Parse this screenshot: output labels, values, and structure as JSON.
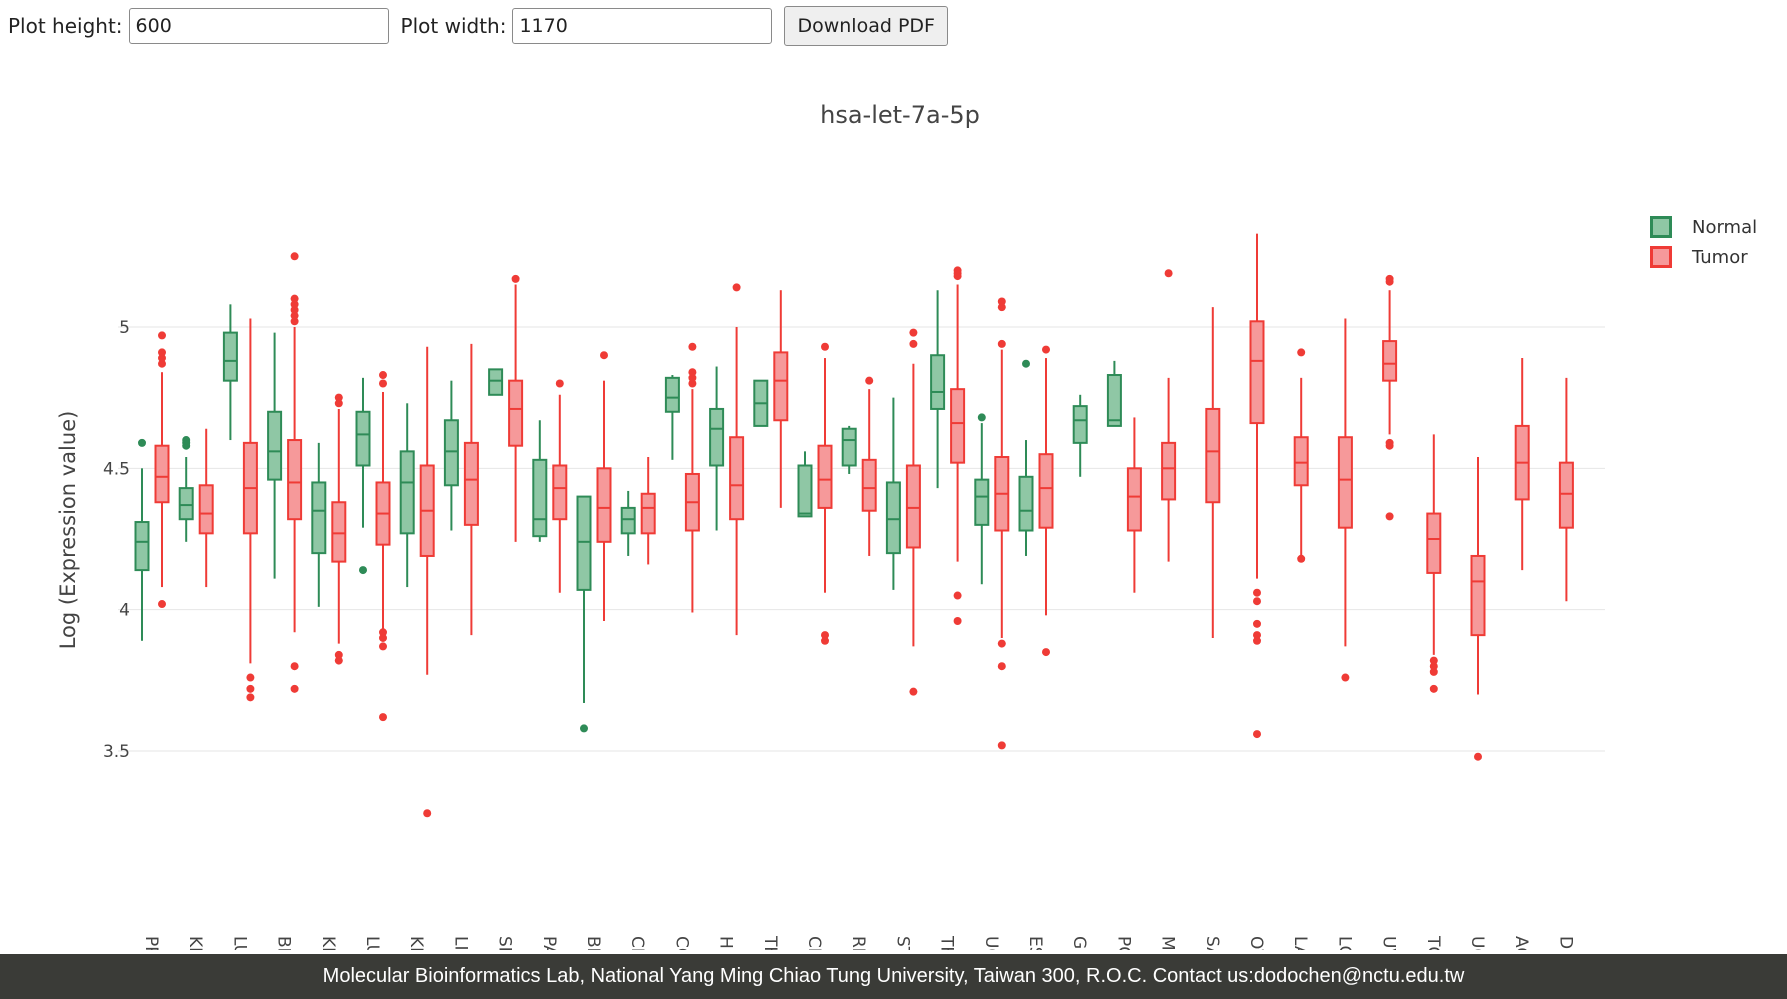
{
  "controls": {
    "height_label": "Plot height:",
    "height_value": "600",
    "width_label": "Plot width:",
    "width_value": "1170",
    "download_label": "Download PDF"
  },
  "footer": {
    "text": "Molecular Bioinformatics Lab, National Yang Ming Chiao Tung University, Taiwan 300, R.O.C. Contact us:dodochen@nctu.edu.tw"
  },
  "legend": [
    {
      "name": "Normal",
      "color": "#2e8b57",
      "fill": "#8fc7a5"
    },
    {
      "name": "Tumor",
      "color": "#ef3b36",
      "fill": "#f6999a"
    }
  ],
  "chart_data": {
    "type": "box",
    "title": "hsa-let-7a-5p",
    "xlabel": "",
    "ylabel": "Log (Expression value)",
    "ylim": [
      3.15,
      5.35
    ],
    "yticks": [
      3.5,
      4,
      4.5,
      5
    ],
    "grid": true,
    "legend_position": "top-right",
    "categories": [
      "PRAD",
      "KICH",
      "LUAD",
      "BRCA",
      "KIRP",
      "LUSC",
      "KIRC",
      "LIHC",
      "SKCM",
      "PAAD",
      "BLCA",
      "CHOL",
      "COAD",
      "HNSC",
      "THYM",
      "CESC",
      "READ",
      "STAD",
      "THCA",
      "UCEC",
      "ESCA",
      "GBM",
      "PCPG",
      "MESO",
      "SARC",
      "OV",
      "LAML",
      "LGG",
      "UVM",
      "TGCT",
      "UCS",
      "ACC",
      "DLBC"
    ],
    "series": [
      {
        "name": "Normal",
        "boxes": [
          {
            "category": "PRAD",
            "whislo": 3.89,
            "q1": 4.14,
            "med": 4.24,
            "q3": 4.31,
            "whishi": 4.5,
            "fliers": [
              4.59
            ]
          },
          {
            "category": "KICH",
            "whislo": 4.24,
            "q1": 4.32,
            "med": 4.37,
            "q3": 4.43,
            "whishi": 4.54,
            "fliers": [
              4.58,
              4.6,
              4.59
            ]
          },
          {
            "category": "LUAD",
            "whislo": 4.6,
            "q1": 4.81,
            "med": 4.88,
            "q3": 4.98,
            "whishi": 5.08,
            "fliers": []
          },
          {
            "category": "BRCA",
            "whislo": 4.11,
            "q1": 4.46,
            "med": 4.56,
            "q3": 4.7,
            "whishi": 4.98,
            "fliers": []
          },
          {
            "category": "KIRP",
            "whislo": 4.01,
            "q1": 4.2,
            "med": 4.35,
            "q3": 4.45,
            "whishi": 4.59,
            "fliers": []
          },
          {
            "category": "LUSC",
            "whislo": 4.29,
            "q1": 4.51,
            "med": 4.62,
            "q3": 4.7,
            "whishi": 4.82,
            "fliers": [
              4.14
            ]
          },
          {
            "category": "KIRC",
            "whislo": 4.08,
            "q1": 4.27,
            "med": 4.45,
            "q3": 4.56,
            "whishi": 4.73,
            "fliers": []
          },
          {
            "category": "LIHC",
            "whislo": 4.28,
            "q1": 4.44,
            "med": 4.56,
            "q3": 4.67,
            "whishi": 4.81,
            "fliers": []
          },
          {
            "category": "SKCM",
            "whislo": 4.76,
            "q1": 4.76,
            "med": 4.81,
            "q3": 4.85,
            "whishi": 4.85,
            "fliers": []
          },
          {
            "category": "PAAD",
            "whislo": 4.24,
            "q1": 4.26,
            "med": 4.32,
            "q3": 4.53,
            "whishi": 4.67,
            "fliers": []
          },
          {
            "category": "BLCA",
            "whislo": 3.67,
            "q1": 4.07,
            "med": 4.24,
            "q3": 4.4,
            "whishi": 4.4,
            "fliers": [
              3.58
            ]
          },
          {
            "category": "CHOL",
            "whislo": 4.19,
            "q1": 4.27,
            "med": 4.32,
            "q3": 4.36,
            "whishi": 4.42,
            "fliers": []
          },
          {
            "category": "COAD",
            "whislo": 4.53,
            "q1": 4.7,
            "med": 4.75,
            "q3": 4.82,
            "whishi": 4.83,
            "fliers": []
          },
          {
            "category": "HNSC",
            "whislo": 4.28,
            "q1": 4.51,
            "med": 4.64,
            "q3": 4.71,
            "whishi": 4.86,
            "fliers": []
          },
          {
            "category": "THYM",
            "whislo": 4.65,
            "q1": 4.65,
            "med": 4.73,
            "q3": 4.81,
            "whishi": 4.81,
            "fliers": []
          },
          {
            "category": "CESC",
            "whislo": 4.33,
            "q1": 4.33,
            "med": 4.34,
            "q3": 4.51,
            "whishi": 4.56,
            "fliers": []
          },
          {
            "category": "READ",
            "whislo": 4.48,
            "q1": 4.51,
            "med": 4.6,
            "q3": 4.64,
            "whishi": 4.65,
            "fliers": []
          },
          {
            "category": "STAD",
            "whislo": 4.07,
            "q1": 4.2,
            "med": 4.32,
            "q3": 4.45,
            "whishi": 4.75,
            "fliers": []
          },
          {
            "category": "THCA",
            "whislo": 4.43,
            "q1": 4.71,
            "med": 4.77,
            "q3": 4.9,
            "whishi": 5.13,
            "fliers": []
          },
          {
            "category": "UCEC",
            "whislo": 4.09,
            "q1": 4.3,
            "med": 4.4,
            "q3": 4.46,
            "whishi": 4.66,
            "fliers": [
              4.68
            ]
          },
          {
            "category": "ESCA",
            "whislo": 4.19,
            "q1": 4.28,
            "med": 4.35,
            "q3": 4.47,
            "whishi": 4.6,
            "fliers": [
              4.87
            ]
          },
          {
            "category": "GBM",
            "whislo": 4.47,
            "q1": 4.59,
            "med": 4.67,
            "q3": 4.72,
            "whishi": 4.76,
            "fliers": []
          },
          {
            "category": "PCPG",
            "whislo": 4.65,
            "q1": 4.65,
            "med": 4.67,
            "q3": 4.83,
            "whishi": 4.88,
            "fliers": []
          }
        ]
      },
      {
        "name": "Tumor",
        "boxes": [
          {
            "category": "PRAD",
            "whislo": 4.08,
            "q1": 4.38,
            "med": 4.47,
            "q3": 4.58,
            "whishi": 4.84,
            "fliers": [
              4.02,
              4.87,
              4.89,
              4.91,
              4.97
            ]
          },
          {
            "category": "KICH",
            "whislo": 4.08,
            "q1": 4.27,
            "med": 4.34,
            "q3": 4.44,
            "whishi": 4.64,
            "fliers": []
          },
          {
            "category": "LUAD",
            "whislo": 3.81,
            "q1": 4.27,
            "med": 4.43,
            "q3": 4.59,
            "whishi": 5.03,
            "fliers": [
              3.69,
              3.72,
              3.76
            ]
          },
          {
            "category": "BRCA",
            "whislo": 3.92,
            "q1": 4.32,
            "med": 4.45,
            "q3": 4.6,
            "whishi": 5.0,
            "fliers": [
              3.72,
              3.8,
              5.02,
              5.04,
              5.06,
              5.08,
              5.1,
              5.25
            ]
          },
          {
            "category": "KIRP",
            "whislo": 3.88,
            "q1": 4.17,
            "med": 4.27,
            "q3": 4.38,
            "whishi": 4.71,
            "fliers": [
              3.82,
              3.84,
              4.73,
              4.75
            ]
          },
          {
            "category": "LUSC",
            "whislo": 3.93,
            "q1": 4.23,
            "med": 4.34,
            "q3": 4.45,
            "whishi": 4.77,
            "fliers": [
              3.62,
              3.87,
              3.9,
              3.92,
              4.8,
              4.83
            ]
          },
          {
            "category": "KIRC",
            "whislo": 3.77,
            "q1": 4.19,
            "med": 4.35,
            "q3": 4.51,
            "whishi": 4.93,
            "fliers": [
              3.28
            ]
          },
          {
            "category": "LIHC",
            "whislo": 3.91,
            "q1": 4.3,
            "med": 4.46,
            "q3": 4.59,
            "whishi": 4.94,
            "fliers": []
          },
          {
            "category": "SKCM",
            "whislo": 4.24,
            "q1": 4.58,
            "med": 4.71,
            "q3": 4.81,
            "whishi": 5.15,
            "fliers": [
              5.17
            ]
          },
          {
            "category": "PAAD",
            "whislo": 4.06,
            "q1": 4.32,
            "med": 4.43,
            "q3": 4.51,
            "whishi": 4.76,
            "fliers": [
              4.8
            ]
          },
          {
            "category": "BLCA",
            "whislo": 3.96,
            "q1": 4.24,
            "med": 4.36,
            "q3": 4.5,
            "whishi": 4.81,
            "fliers": [
              4.9
            ]
          },
          {
            "category": "CHOL",
            "whislo": 4.16,
            "q1": 4.27,
            "med": 4.36,
            "q3": 4.41,
            "whishi": 4.54,
            "fliers": []
          },
          {
            "category": "COAD",
            "whislo": 3.99,
            "q1": 4.28,
            "med": 4.38,
            "q3": 4.48,
            "whishi": 4.78,
            "fliers": [
              4.8,
              4.82,
              4.84,
              4.93
            ]
          },
          {
            "category": "HNSC",
            "whislo": 3.91,
            "q1": 4.32,
            "med": 4.44,
            "q3": 4.61,
            "whishi": 5.0,
            "fliers": [
              5.14
            ]
          },
          {
            "category": "THYM",
            "whislo": 4.36,
            "q1": 4.67,
            "med": 4.81,
            "q3": 4.91,
            "whishi": 5.13,
            "fliers": []
          },
          {
            "category": "CESC",
            "whislo": 4.06,
            "q1": 4.36,
            "med": 4.46,
            "q3": 4.58,
            "whishi": 4.89,
            "fliers": [
              3.89,
              3.91,
              4.93
            ]
          },
          {
            "category": "READ",
            "whislo": 4.19,
            "q1": 4.35,
            "med": 4.43,
            "q3": 4.53,
            "whishi": 4.78,
            "fliers": [
              4.81
            ]
          },
          {
            "category": "STAD",
            "whislo": 3.87,
            "q1": 4.22,
            "med": 4.36,
            "q3": 4.51,
            "whishi": 4.87,
            "fliers": [
              3.71,
              4.94,
              4.98
            ]
          },
          {
            "category": "THCA",
            "whislo": 4.17,
            "q1": 4.52,
            "med": 4.66,
            "q3": 4.78,
            "whishi": 5.15,
            "fliers": [
              3.96,
              4.05,
              5.18,
              5.19,
              5.2
            ]
          },
          {
            "category": "UCEC",
            "whislo": 3.9,
            "q1": 4.28,
            "med": 4.41,
            "q3": 4.54,
            "whishi": 4.92,
            "fliers": [
              3.52,
              3.8,
              3.88,
              4.94,
              5.07,
              5.09
            ]
          },
          {
            "category": "ESCA",
            "whislo": 3.98,
            "q1": 4.29,
            "med": 4.43,
            "q3": 4.55,
            "whishi": 4.89,
            "fliers": [
              3.85,
              4.92
            ]
          },
          {
            "category": "PCPG",
            "whislo": 4.06,
            "q1": 4.28,
            "med": 4.4,
            "q3": 4.5,
            "whishi": 4.68,
            "fliers": []
          },
          {
            "category": "MESO",
            "whislo": 4.17,
            "q1": 4.39,
            "med": 4.5,
            "q3": 4.59,
            "whishi": 4.82,
            "fliers": [
              5.19
            ]
          },
          {
            "category": "SARC",
            "whislo": 3.9,
            "q1": 4.38,
            "med": 4.56,
            "q3": 4.71,
            "whishi": 5.07,
            "fliers": []
          },
          {
            "category": "OV",
            "whislo": 4.11,
            "q1": 4.66,
            "med": 4.88,
            "q3": 5.02,
            "whishi": 5.33,
            "fliers": [
              3.56,
              3.89,
              3.91,
              3.95,
              4.03,
              4.06
            ]
          },
          {
            "category": "LAML",
            "whislo": 4.19,
            "q1": 4.44,
            "med": 4.52,
            "q3": 4.61,
            "whishi": 4.82,
            "fliers": [
              4.18,
              4.91
            ]
          },
          {
            "category": "LGG",
            "whislo": 3.87,
            "q1": 4.29,
            "med": 4.46,
            "q3": 4.61,
            "whishi": 5.03,
            "fliers": [
              3.76
            ]
          },
          {
            "category": "UVM",
            "whislo": 4.62,
            "q1": 4.81,
            "med": 4.87,
            "q3": 4.95,
            "whishi": 5.13,
            "fliers": [
              4.33,
              4.58,
              4.59,
              5.16,
              5.17
            ]
          },
          {
            "category": "TGCT",
            "whislo": 3.84,
            "q1": 4.13,
            "med": 4.25,
            "q3": 4.34,
            "whishi": 4.62,
            "fliers": [
              3.72,
              3.78,
              3.8,
              3.82
            ]
          },
          {
            "category": "UCS",
            "whislo": 3.7,
            "q1": 3.91,
            "med": 4.1,
            "q3": 4.19,
            "whishi": 4.54,
            "fliers": [
              3.48
            ]
          },
          {
            "category": "ACC",
            "whislo": 4.14,
            "q1": 4.39,
            "med": 4.52,
            "q3": 4.65,
            "whishi": 4.89,
            "fliers": []
          },
          {
            "category": "DLBC",
            "whislo": 4.03,
            "q1": 4.29,
            "med": 4.41,
            "q3": 4.52,
            "whishi": 4.82,
            "fliers": []
          }
        ]
      }
    ]
  }
}
